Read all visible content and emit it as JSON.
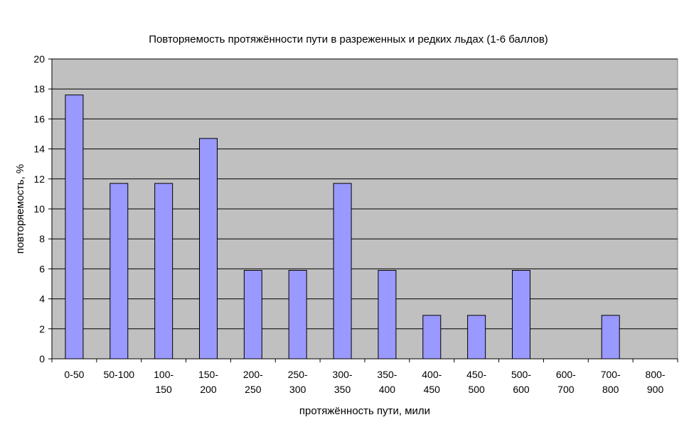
{
  "chart_data": {
    "type": "bar",
    "title": "Повторяемость протяжённости пути в разреженных и редких льдах (1-6 баллов)",
    "xlabel": "протяжённость пути, мили",
    "ylabel": "повторяемость, %",
    "ylim": [
      0,
      20
    ],
    "yticks": [
      "0",
      "2",
      "4",
      "6",
      "8",
      "10",
      "12",
      "14",
      "16",
      "18",
      "20"
    ],
    "categories": [
      [
        "0-50"
      ],
      [
        "50-100"
      ],
      [
        "100-",
        "150"
      ],
      [
        "150-",
        "200"
      ],
      [
        "200-",
        "250"
      ],
      [
        "250-",
        "300"
      ],
      [
        "300-",
        "350"
      ],
      [
        "350-",
        "400"
      ],
      [
        "400-",
        "450"
      ],
      [
        "450-",
        "500"
      ],
      [
        "500-",
        "600"
      ],
      [
        "600-",
        "700"
      ],
      [
        "700-",
        "800"
      ],
      [
        "800-",
        "900"
      ]
    ],
    "values": [
      17.6,
      11.7,
      11.7,
      14.7,
      5.9,
      5.9,
      11.7,
      5.9,
      2.9,
      2.9,
      5.9,
      0,
      2.9,
      0
    ],
    "grid": true,
    "legend": "none",
    "colors": {
      "bar_fill": "#9999ff",
      "plot_background": "#c0c0c0",
      "gridline": "#000000",
      "bar_stroke": "#000000"
    }
  }
}
